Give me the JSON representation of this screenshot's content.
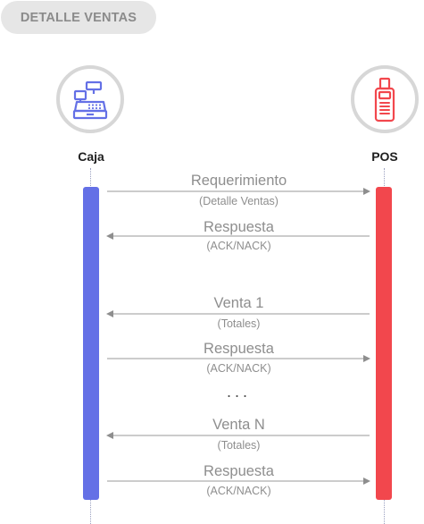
{
  "title": "DETALLE VENTAS",
  "actors": {
    "left": {
      "label": "Caja",
      "icon": "cash-register-icon",
      "color": "#6470e6"
    },
    "right": {
      "label": "POS",
      "icon": "pos-terminal-icon",
      "color": "#f2474d"
    }
  },
  "messages": [
    {
      "label": "Requerimiento",
      "sublabel": "(Detalle Ventas)",
      "direction": "left-to-right"
    },
    {
      "label": "Respuesta",
      "sublabel": "(ACK/NACK)",
      "direction": "right-to-left"
    },
    {
      "label": "Venta 1",
      "sublabel": "(Totales)",
      "direction": "right-to-left"
    },
    {
      "label": "Respuesta",
      "sublabel": "(ACK/NACK)",
      "direction": "left-to-right"
    },
    {
      "label": "Venta N",
      "sublabel": "(Totales)",
      "direction": "right-to-left"
    },
    {
      "label": "Respuesta",
      "sublabel": "(ACK/NACK)",
      "direction": "left-to-right"
    }
  ],
  "ellipsis": "..."
}
